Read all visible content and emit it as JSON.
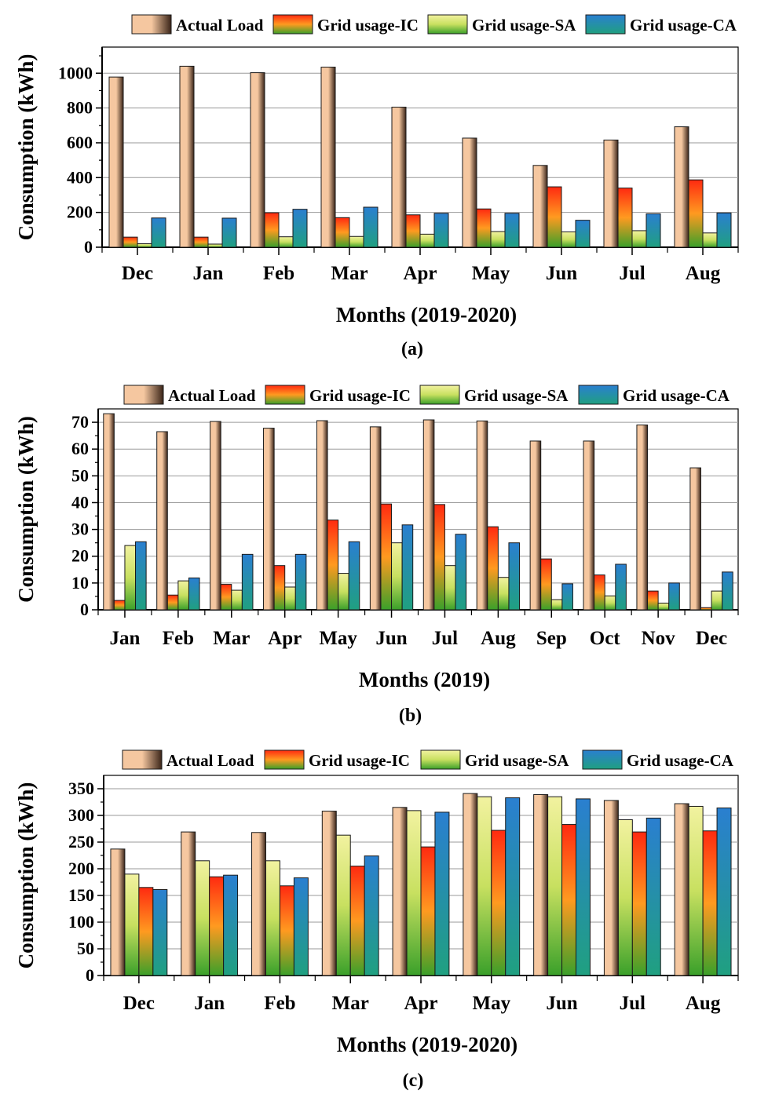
{
  "colors": {
    "actual": [
      "#f5c7a0",
      "#3a2418"
    ],
    "ic": [
      "#ff2a10",
      "#3aa02a"
    ],
    "sa": [
      "#f2f2a0",
      "#3aa02a"
    ],
    "ca": [
      "#2a7fd0",
      "#20a080"
    ]
  },
  "chart_data": [
    {
      "type": "bar",
      "title": "",
      "caption": "(a)",
      "xlabel": "Months (2019-2020)",
      "ylabel": "Consumption (kWh)",
      "ylim": [
        0,
        1150
      ],
      "yticks": [
        0,
        200,
        400,
        600,
        800,
        1000
      ],
      "grid": true,
      "legend_position": "top",
      "categories": [
        "Dec",
        "Jan",
        "Feb",
        "Mar",
        "Apr",
        "May",
        "Jun",
        "Jul",
        "Aug"
      ],
      "series": [
        {
          "name": "Actual Load",
          "key": "actual",
          "values": [
            978,
            1040,
            1003,
            1035,
            805,
            627,
            470,
            616,
            692
          ]
        },
        {
          "name": "Grid usage-IC",
          "key": "ic",
          "values": [
            58,
            58,
            198,
            170,
            186,
            220,
            347,
            340,
            387
          ]
        },
        {
          "name": "Grid usage-SA",
          "key": "sa",
          "values": [
            20,
            18,
            60,
            62,
            75,
            90,
            88,
            95,
            82
          ]
        },
        {
          "name": "Grid usage-CA",
          "key": "ca",
          "values": [
            168,
            167,
            218,
            230,
            195,
            195,
            155,
            192,
            197
          ]
        }
      ]
    },
    {
      "type": "bar",
      "title": "",
      "caption": "(b)",
      "xlabel": "Months (2019)",
      "ylabel": "Consumption (kWh)",
      "ylim": [
        0,
        75
      ],
      "yticks": [
        0,
        10,
        20,
        30,
        40,
        50,
        60,
        70
      ],
      "grid": true,
      "legend_position": "top",
      "categories": [
        "Jan",
        "Feb",
        "Mar",
        "Apr",
        "May",
        "Jun",
        "Jul",
        "Aug",
        "Sep",
        "Oct",
        "Nov",
        "Dec"
      ],
      "series": [
        {
          "name": "Actual Load",
          "key": "actual",
          "values": [
            73.2,
            66.5,
            70.3,
            67.8,
            70.6,
            68.3,
            70.9,
            70.5,
            63.0,
            63.0,
            69.0,
            53.0
          ]
        },
        {
          "name": "Grid usage-IC",
          "key": "ic",
          "values": [
            3.5,
            5.5,
            9.5,
            16.5,
            33.5,
            39.5,
            39.3,
            31.0,
            19.0,
            13.0,
            7.0,
            0.8
          ]
        },
        {
          "name": "Grid usage-SA",
          "key": "sa",
          "values": [
            24.0,
            10.8,
            7.3,
            8.5,
            13.6,
            25.0,
            16.5,
            12.1,
            3.8,
            5.2,
            2.5,
            7.0
          ]
        },
        {
          "name": "Grid usage-CA",
          "key": "ca",
          "values": [
            25.4,
            11.9,
            20.7,
            20.7,
            25.4,
            31.7,
            28.2,
            25.0,
            9.7,
            17.0,
            10.0,
            14.1
          ]
        }
      ]
    },
    {
      "type": "bar",
      "title": "",
      "caption": "(c)",
      "xlabel": "Months (2019-2020)",
      "ylabel": "Consumption (kWh)",
      "ylim": [
        0,
        375
      ],
      "yticks": [
        0,
        50,
        100,
        150,
        200,
        250,
        300,
        350
      ],
      "grid": true,
      "legend_position": "top",
      "categories": [
        "Dec",
        "Jan",
        "Feb",
        "Mar",
        "Apr",
        "May",
        "Jun",
        "Jul",
        "Aug"
      ],
      "series": [
        {
          "name": "Actual Load",
          "key": "actual",
          "values": [
            237,
            269,
            268,
            308,
            315,
            341,
            339,
            328,
            322
          ]
        },
        {
          "name": "Grid usage-SA",
          "key": "sa",
          "values": [
            190,
            215,
            215,
            263,
            309,
            335,
            335,
            292,
            317
          ]
        },
        {
          "name": "Grid usage-IC",
          "key": "ic",
          "values": [
            165,
            185,
            168,
            205,
            241,
            272,
            283,
            269,
            271
          ]
        },
        {
          "name": "Grid usage-CA",
          "key": "ca",
          "values": [
            161,
            188,
            183,
            224,
            306,
            333,
            331,
            295,
            314
          ]
        }
      ],
      "legend_order": [
        "Actual Load",
        "Grid usage-IC",
        "Grid usage-SA",
        "Grid usage-CA"
      ]
    }
  ]
}
